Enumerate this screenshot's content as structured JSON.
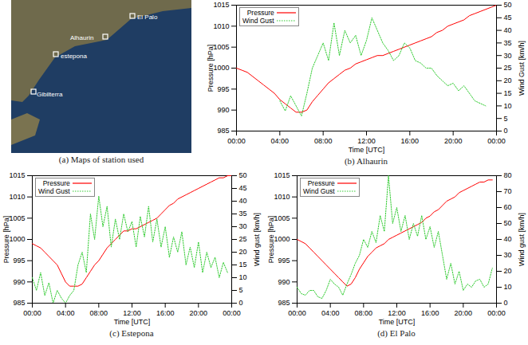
{
  "chart_data": [
    {
      "type": "map",
      "title": "(a) Maps of station used",
      "labels": [
        "El Palo",
        "Alhaurin",
        "estepona",
        "Gibilterra"
      ]
    },
    {
      "type": "line",
      "title": "(b) Alhaurin",
      "x": [
        0,
        0.5,
        1,
        1.5,
        2,
        2.5,
        3,
        3.5,
        4,
        4.5,
        5,
        5.5,
        6,
        6.5,
        7,
        7.5,
        8,
        8.5,
        9,
        9.5,
        10,
        10.5,
        11,
        11.5,
        12,
        12.5,
        13,
        13.5,
        14,
        14.5,
        15,
        15.5,
        16,
        16.5,
        17,
        17.5,
        18,
        18.5,
        19,
        19.5,
        20,
        20.5,
        21,
        21.5,
        22,
        22.5,
        23,
        23.5,
        24
      ],
      "xlim": [
        0,
        24
      ],
      "xticks": [
        {
          "value": 0,
          "label": "00:00"
        },
        {
          "value": 4,
          "label": "04:00"
        },
        {
          "value": 8,
          "label": "08:00"
        },
        {
          "value": 12,
          "label": "12:00"
        },
        {
          "value": 16,
          "label": "16:00"
        },
        {
          "value": 20,
          "label": "20:00"
        },
        {
          "value": 24,
          "label": "00:00"
        }
      ],
      "xlabel": "Time [UTC]",
      "ylabel": "Pressure [hPa]",
      "y2label": "Wind Gust [km/h]",
      "ylim": [
        985,
        1015
      ],
      "yticks": [
        985,
        990,
        995,
        1000,
        1005,
        1010,
        1015
      ],
      "y2lim": [
        0,
        50
      ],
      "y2ticks": [
        0,
        5,
        10,
        15,
        20,
        25,
        30,
        35,
        40,
        45,
        50
      ],
      "legend": "top-left",
      "series": [
        {
          "name": "Pressure",
          "color": "#ff0000",
          "line_style": "solid",
          "values": [
            1000,
            999.5,
            999,
            998,
            997,
            996,
            995,
            994,
            992.5,
            991.5,
            990.5,
            989.5,
            989.5,
            990,
            992,
            993.5,
            995,
            996.5,
            997.5,
            998.5,
            999.5,
            1000,
            1001,
            1001.5,
            1002,
            1002.5,
            1003,
            1003,
            1003.5,
            1004,
            1004.5,
            1005,
            1005.5,
            1006,
            1006.5,
            1007,
            1007.5,
            1008.5,
            1009,
            1010,
            1010.5,
            1011,
            1011.5,
            1012.5,
            1013,
            1013.5,
            1014,
            1014.5,
            1015
          ]
        },
        {
          "name": "Wind Gust",
          "color": "#33cc33",
          "line_style": "dotted",
          "axis": "y2",
          "values": [
            null,
            null,
            null,
            null,
            null,
            null,
            null,
            null,
            12,
            8,
            14,
            10,
            6,
            15,
            25,
            30,
            35,
            28,
            43,
            30,
            40,
            35,
            38,
            30,
            36,
            45,
            40,
            35,
            32,
            28,
            30,
            35,
            33,
            28,
            27,
            25,
            25,
            22,
            20,
            18,
            19,
            16,
            18,
            15,
            12,
            11,
            10,
            null,
            null
          ]
        }
      ]
    },
    {
      "type": "line",
      "title": "(c) Estepona",
      "x": [
        0,
        0.5,
        1,
        1.5,
        2,
        2.5,
        3,
        3.5,
        4,
        4.5,
        5,
        5.5,
        6,
        6.5,
        7,
        7.5,
        8,
        8.5,
        9,
        9.5,
        10,
        10.5,
        11,
        11.5,
        12,
        12.5,
        13,
        13.5,
        14,
        14.5,
        15,
        15.5,
        16,
        16.5,
        17,
        17.5,
        18,
        18.5,
        19,
        19.5,
        20,
        20.5,
        21,
        21.5,
        22,
        22.5,
        23,
        23.5,
        24
      ],
      "xlim": [
        0,
        24
      ],
      "xticks": [
        {
          "value": 0,
          "label": "00:00"
        },
        {
          "value": 4,
          "label": "04:00"
        },
        {
          "value": 8,
          "label": "08:00"
        },
        {
          "value": 12,
          "label": "12:00"
        },
        {
          "value": 16,
          "label": "16:00"
        },
        {
          "value": 20,
          "label": "20:00"
        },
        {
          "value": 24,
          "label": "00:00"
        }
      ],
      "xlabel": "Time [UTC]",
      "ylabel": "Pressure [hPa]",
      "y2label": "Wind gust [km/h]",
      "ylim": [
        985,
        1015
      ],
      "yticks": [
        985,
        990,
        995,
        1000,
        1005,
        1010,
        1015
      ],
      "y2lim": [
        0,
        50
      ],
      "y2ticks": [
        0,
        5,
        10,
        15,
        20,
        25,
        30,
        35,
        40,
        45,
        50
      ],
      "legend": "top-left",
      "series": [
        {
          "name": "Pressure",
          "color": "#ff0000",
          "line_style": "solid",
          "values": [
            999,
            998.5,
            998,
            997,
            996,
            995,
            994,
            992,
            990,
            989,
            989,
            989,
            989.5,
            991,
            992.5,
            994,
            995,
            996.5,
            998,
            999,
            1000,
            1001,
            1002,
            1002,
            1002.5,
            1002.5,
            1003,
            1003.5,
            1004,
            1004.5,
            1005,
            1006,
            1007,
            1008,
            1008.5,
            1009.5,
            1010,
            1010.5,
            1011,
            1011.5,
            1012,
            1012.5,
            1013,
            1013.5,
            1014,
            1014.5,
            1014.5,
            1015,
            1015
          ]
        },
        {
          "name": "Wind Gust",
          "color": "#33cc33",
          "line_style": "dotted",
          "axis": "y2",
          "values": [
            10,
            5,
            12,
            3,
            8,
            0,
            5,
            2,
            0,
            3,
            5,
            15,
            20,
            12,
            35,
            25,
            42,
            30,
            38,
            22,
            33,
            25,
            35,
            28,
            32,
            22,
            34,
            26,
            38,
            24,
            33,
            22,
            30,
            18,
            26,
            20,
            28,
            15,
            22,
            14,
            24,
            12,
            20,
            14,
            18,
            10,
            16,
            12,
            null
          ]
        }
      ]
    },
    {
      "type": "line",
      "title": "(d) El Palo",
      "x": [
        0,
        0.5,
        1,
        1.5,
        2,
        2.5,
        3,
        3.5,
        4,
        4.5,
        5,
        5.5,
        6,
        6.5,
        7,
        7.5,
        8,
        8.5,
        9,
        9.5,
        10,
        10.5,
        11,
        11.5,
        12,
        12.5,
        13,
        13.5,
        14,
        14.5,
        15,
        15.5,
        16,
        16.5,
        17,
        17.5,
        18,
        18.5,
        19,
        19.5,
        20,
        20.5,
        21,
        21.5,
        22,
        22.5,
        23,
        23.5,
        24
      ],
      "xlim": [
        0,
        24
      ],
      "xticks": [
        {
          "value": 0,
          "label": "00:00"
        },
        {
          "value": 4,
          "label": "04:00"
        },
        {
          "value": 8,
          "label": "08:00"
        },
        {
          "value": 12,
          "label": "12:00"
        },
        {
          "value": 16,
          "label": "16:00"
        },
        {
          "value": 20,
          "label": "20:00"
        },
        {
          "value": 24,
          "label": "00:00"
        }
      ],
      "xlabel": "Time [UTC]",
      "ylabel": "Pressure [hPa]",
      "y2label": "Wind gust [km/h]",
      "ylim": [
        985,
        1015
      ],
      "yticks": [
        985,
        990,
        995,
        1000,
        1005,
        1010,
        1015
      ],
      "y2lim": [
        0,
        80
      ],
      "y2ticks": [
        0,
        10,
        20,
        30,
        40,
        50,
        60,
        70,
        80
      ],
      "legend": "top-left",
      "series": [
        {
          "name": "Pressure",
          "color": "#ff0000",
          "line_style": "solid",
          "values": [
            1000,
            999.5,
            999,
            998,
            997,
            996,
            995,
            994,
            993,
            992,
            991,
            990,
            989,
            989.5,
            991,
            993,
            994.5,
            996,
            997,
            998,
            998.5,
            999,
            1000,
            1000.5,
            1001,
            1001.5,
            1002,
            1002.5,
            1003,
            1003.5,
            1004,
            1005,
            1005.5,
            1006.5,
            1007,
            1008,
            1009,
            1009.5,
            1010,
            1011,
            1011.5,
            1012,
            1012.5,
            1013,
            1013.5,
            1013.5,
            1014,
            1014,
            null
          ]
        },
        {
          "name": "Wind Gust",
          "color": "#33cc33",
          "line_style": "dotted",
          "axis": "y2",
          "values": [
            10,
            6,
            5,
            8,
            8,
            4,
            3,
            8,
            15,
            12,
            10,
            5,
            12,
            18,
            25,
            30,
            40,
            35,
            45,
            38,
            55,
            45,
            80,
            50,
            60,
            45,
            55,
            40,
            50,
            42,
            55,
            40,
            48,
            35,
            45,
            30,
            15,
            25,
            12,
            20,
            8,
            12,
            10,
            14,
            15,
            10,
            12,
            22,
            null
          ]
        }
      ]
    }
  ]
}
